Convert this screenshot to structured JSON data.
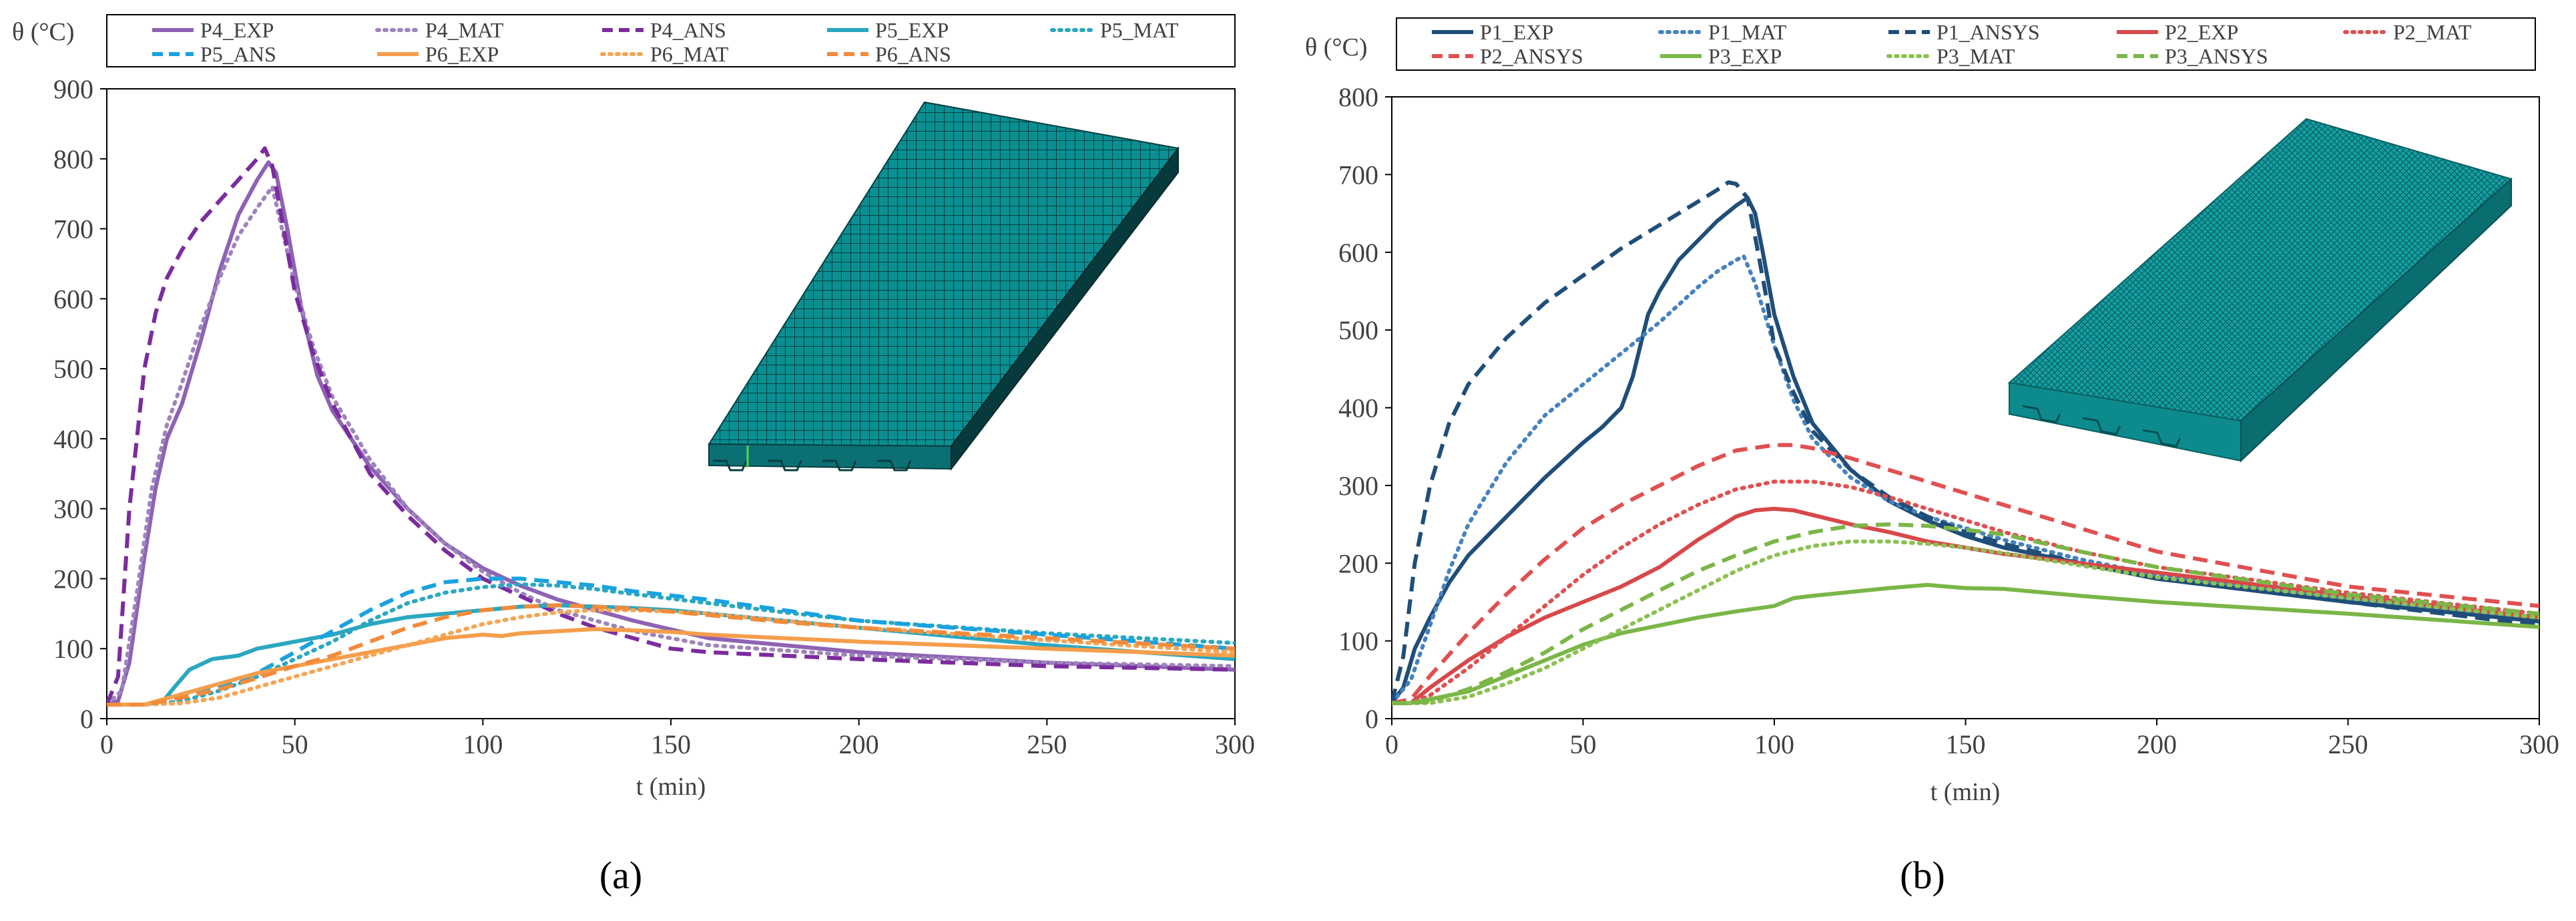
{
  "chart_data": [
    {
      "type": "line",
      "panel_label": "(a)",
      "title": "",
      "xlabel": "t (min)",
      "ylabel": "θ (°C)",
      "xlim": [
        0,
        300
      ],
      "ylim": [
        0,
        900
      ],
      "xticks": [
        0,
        50,
        100,
        150,
        200,
        250,
        300
      ],
      "yticks": [
        0,
        100,
        200,
        300,
        400,
        500,
        600,
        700,
        800,
        900
      ],
      "grid": false,
      "legend_position": "top",
      "inset": "finite element mesh of slab (model view)",
      "series": [
        {
          "name": "P4_EXP",
          "color": "#8E62B4",
          "style": "solid",
          "x": [
            0,
            3,
            6,
            10,
            13,
            16,
            20,
            25,
            30,
            35,
            40,
            43,
            45,
            48,
            52,
            56,
            60,
            70,
            80,
            90,
            100,
            110,
            120,
            140,
            160,
            200,
            250,
            300
          ],
          "y": [
            20,
            25,
            80,
            230,
            330,
            400,
            450,
            540,
            640,
            720,
            770,
            795,
            780,
            700,
            580,
            490,
            440,
            360,
            300,
            250,
            215,
            190,
            170,
            140,
            115,
            95,
            80,
            70
          ]
        },
        {
          "name": "P4_MAT",
          "color": "#9E84BE",
          "style": "dotted",
          "x": [
            0,
            4,
            8,
            12,
            16,
            20,
            25,
            30,
            35,
            40,
            44,
            47,
            50,
            55,
            60,
            70,
            80,
            90,
            100,
            110,
            120,
            140,
            160,
            200,
            250,
            300
          ],
          "y": [
            20,
            40,
            180,
            330,
            420,
            480,
            560,
            630,
            690,
            730,
            760,
            690,
            620,
            530,
            460,
            370,
            300,
            250,
            210,
            180,
            155,
            125,
            105,
            90,
            80,
            75
          ]
        },
        {
          "name": "P4_ANS",
          "color": "#7B2C9E",
          "style": "dashed",
          "x": [
            0,
            3,
            6,
            10,
            13,
            16,
            20,
            25,
            30,
            35,
            40,
            42,
            44,
            47,
            50,
            55,
            60,
            70,
            80,
            90,
            100,
            110,
            120,
            130,
            140,
            150,
            160,
            200,
            250,
            300
          ],
          "y": [
            20,
            60,
            300,
            500,
            580,
            630,
            670,
            710,
            740,
            770,
            800,
            815,
            790,
            700,
            610,
            520,
            450,
            350,
            290,
            240,
            200,
            175,
            150,
            130,
            115,
            100,
            95,
            85,
            75,
            70
          ]
        },
        {
          "name": "P5_EXP",
          "color": "#2BA7C1",
          "style": "solid",
          "x": [
            0,
            10,
            15,
            18,
            22,
            28,
            35,
            40,
            45,
            50,
            55,
            60,
            70,
            80,
            90,
            100,
            110,
            120,
            130,
            140,
            150,
            160,
            200,
            250,
            300
          ],
          "y": [
            20,
            20,
            25,
            45,
            70,
            85,
            90,
            100,
            105,
            110,
            115,
            120,
            135,
            145,
            150,
            155,
            160,
            162,
            160,
            158,
            155,
            150,
            130,
            105,
            85
          ]
        },
        {
          "name": "P5_MAT",
          "color": "#2BA7C1",
          "style": "dotted",
          "x": [
            0,
            10,
            20,
            30,
            40,
            50,
            60,
            70,
            80,
            90,
            100,
            110,
            120,
            130,
            140,
            160,
            180,
            200,
            250,
            300
          ],
          "y": [
            20,
            20,
            25,
            40,
            60,
            85,
            110,
            140,
            165,
            180,
            188,
            192,
            190,
            185,
            178,
            165,
            152,
            140,
            122,
            108
          ]
        },
        {
          "name": "P5_ANS",
          "color": "#19A2DF",
          "style": "dashed",
          "x": [
            0,
            10,
            20,
            30,
            40,
            50,
            60,
            70,
            80,
            90,
            100,
            110,
            120,
            130,
            140,
            160,
            180,
            200,
            250,
            300
          ],
          "y": [
            20,
            20,
            30,
            45,
            65,
            95,
            125,
            155,
            180,
            195,
            200,
            200,
            195,
            190,
            182,
            170,
            155,
            140,
            120,
            100
          ]
        },
        {
          "name": "P6_EXP",
          "color": "#F59E4B",
          "style": "solid",
          "x": [
            0,
            10,
            20,
            30,
            40,
            50,
            60,
            70,
            80,
            90,
            100,
            105,
            110,
            120,
            130,
            140,
            150,
            160,
            180,
            200,
            250,
            300
          ],
          "y": [
            20,
            20,
            35,
            50,
            65,
            75,
            85,
            95,
            105,
            115,
            120,
            118,
            122,
            125,
            128,
            126,
            124,
            120,
            115,
            110,
            100,
            90
          ]
        },
        {
          "name": "P6_MAT",
          "color": "#F5A555",
          "style": "dotted",
          "x": [
            0,
            10,
            20,
            30,
            40,
            50,
            60,
            70,
            80,
            90,
            100,
            110,
            120,
            130,
            140,
            150,
            160,
            180,
            200,
            250,
            300
          ],
          "y": [
            20,
            20,
            22,
            30,
            45,
            60,
            75,
            90,
            105,
            120,
            135,
            145,
            152,
            155,
            155,
            153,
            150,
            140,
            130,
            112,
            95
          ]
        },
        {
          "name": "P6_ANS",
          "color": "#F38B3A",
          "style": "dashed",
          "x": [
            0,
            10,
            20,
            30,
            40,
            50,
            60,
            70,
            80,
            90,
            100,
            110,
            120,
            130,
            140,
            150,
            160,
            180,
            200,
            250,
            300
          ],
          "y": [
            20,
            20,
            30,
            42,
            58,
            75,
            90,
            110,
            130,
            145,
            155,
            160,
            162,
            160,
            157,
            153,
            148,
            138,
            130,
            115,
            100
          ]
        }
      ]
    },
    {
      "type": "line",
      "panel_label": "(b)",
      "title": "",
      "xlabel": "t (min)",
      "ylabel": "θ (°C)",
      "xlim": [
        0,
        300
      ],
      "ylim": [
        0,
        800
      ],
      "xticks": [
        0,
        50,
        100,
        150,
        200,
        250,
        300
      ],
      "yticks": [
        0,
        100,
        200,
        300,
        400,
        500,
        600,
        700,
        800
      ],
      "grid": false,
      "legend_position": "top",
      "inset": "finite element mesh of slab (model view)",
      "series": [
        {
          "name": "P1_EXP",
          "color": "#1F4E79",
          "style": "solid",
          "x": [
            0,
            3,
            6,
            10,
            15,
            20,
            30,
            40,
            50,
            55,
            60,
            63,
            65,
            67,
            70,
            75,
            80,
            85,
            90,
            93,
            95,
            97,
            100,
            105,
            110,
            120,
            130,
            140,
            150,
            160,
            180,
            200,
            250,
            300
          ],
          "y": [
            20,
            40,
            90,
            130,
            175,
            210,
            260,
            310,
            355,
            375,
            400,
            440,
            480,
            520,
            550,
            590,
            615,
            640,
            660,
            670,
            650,
            600,
            520,
            440,
            380,
            320,
            280,
            255,
            235,
            220,
            200,
            180,
            150,
            125
          ]
        },
        {
          "name": "P1_MAT",
          "color": "#4682C0",
          "style": "dotted",
          "x": [
            0,
            5,
            10,
            15,
            20,
            30,
            40,
            50,
            60,
            70,
            80,
            85,
            90,
            92,
            95,
            100,
            105,
            110,
            120,
            130,
            140,
            160,
            180,
            200,
            250,
            300
          ],
          "y": [
            20,
            50,
            120,
            190,
            250,
            330,
            390,
            430,
            470,
            510,
            555,
            575,
            590,
            595,
            560,
            480,
            410,
            360,
            310,
            280,
            260,
            230,
            205,
            185,
            155,
            130
          ]
        },
        {
          "name": "P1_ANSYS",
          "color": "#1F4E79",
          "style": "dashed",
          "x": [
            0,
            3,
            6,
            10,
            15,
            20,
            30,
            40,
            50,
            60,
            70,
            80,
            85,
            88,
            90,
            93,
            95,
            98,
            100,
            105,
            110,
            120,
            130,
            140,
            150,
            160,
            180,
            200,
            250,
            300
          ],
          "y": [
            20,
            80,
            200,
            300,
            380,
            430,
            490,
            535,
            570,
            605,
            635,
            665,
            680,
            690,
            688,
            670,
            620,
            540,
            480,
            420,
            370,
            320,
            285,
            260,
            240,
            225,
            200,
            180,
            150,
            120
          ]
        },
        {
          "name": "P2_EXP",
          "color": "#D8484A",
          "style": "solid",
          "x": [
            0,
            5,
            10,
            20,
            30,
            40,
            50,
            60,
            70,
            80,
            85,
            90,
            95,
            100,
            105,
            110,
            120,
            130,
            140,
            150,
            160,
            180,
            200,
            250,
            300
          ],
          "y": [
            20,
            20,
            40,
            75,
            105,
            130,
            150,
            170,
            195,
            230,
            245,
            260,
            268,
            270,
            268,
            262,
            250,
            240,
            228,
            220,
            212,
            200,
            188,
            158,
            130
          ]
        },
        {
          "name": "P2_MAT",
          "color": "#E05050",
          "style": "dotted",
          "x": [
            0,
            5,
            10,
            20,
            30,
            40,
            50,
            60,
            70,
            80,
            90,
            100,
            110,
            120,
            130,
            140,
            150,
            160,
            180,
            200,
            250,
            300
          ],
          "y": [
            20,
            20,
            30,
            65,
            105,
            145,
            185,
            220,
            250,
            275,
            295,
            305,
            305,
            298,
            285,
            270,
            255,
            240,
            215,
            195,
            162,
            135
          ]
        },
        {
          "name": "P2_ANSYS",
          "color": "#E05050",
          "style": "dashed",
          "x": [
            0,
            5,
            10,
            20,
            30,
            40,
            50,
            60,
            70,
            80,
            90,
            100,
            105,
            110,
            120,
            130,
            140,
            150,
            160,
            180,
            200,
            250,
            300
          ],
          "y": [
            20,
            25,
            55,
            110,
            160,
            205,
            245,
            275,
            300,
            325,
            345,
            352,
            352,
            348,
            335,
            320,
            305,
            290,
            275,
            245,
            215,
            170,
            145
          ]
        },
        {
          "name": "P3_EXP",
          "color": "#7AB648",
          "style": "solid",
          "x": [
            0,
            5,
            10,
            20,
            30,
            40,
            50,
            60,
            70,
            80,
            90,
            100,
            105,
            110,
            120,
            130,
            140,
            145,
            150,
            160,
            180,
            200,
            250,
            300
          ],
          "y": [
            20,
            20,
            25,
            35,
            55,
            75,
            95,
            110,
            120,
            130,
            138,
            145,
            155,
            158,
            163,
            168,
            172,
            170,
            168,
            167,
            158,
            150,
            135,
            118
          ]
        },
        {
          "name": "P3_MAT",
          "color": "#8CC152",
          "style": "dotted",
          "x": [
            0,
            5,
            10,
            20,
            30,
            40,
            50,
            60,
            70,
            80,
            90,
            100,
            110,
            120,
            130,
            140,
            150,
            160,
            180,
            200,
            250,
            300
          ],
          "y": [
            20,
            20,
            20,
            28,
            45,
            65,
            90,
            115,
            140,
            165,
            190,
            210,
            222,
            228,
            228,
            225,
            220,
            213,
            197,
            182,
            155,
            130
          ]
        },
        {
          "name": "P3_ANSYS",
          "color": "#7AB648",
          "style": "dashed",
          "x": [
            0,
            5,
            10,
            20,
            30,
            40,
            50,
            60,
            70,
            80,
            90,
            100,
            110,
            120,
            130,
            140,
            150,
            160,
            180,
            200,
            250,
            300
          ],
          "y": [
            20,
            20,
            22,
            38,
            60,
            85,
            115,
            140,
            165,
            190,
            210,
            228,
            240,
            248,
            250,
            248,
            243,
            237,
            215,
            195,
            160,
            135
          ]
        }
      ]
    }
  ]
}
